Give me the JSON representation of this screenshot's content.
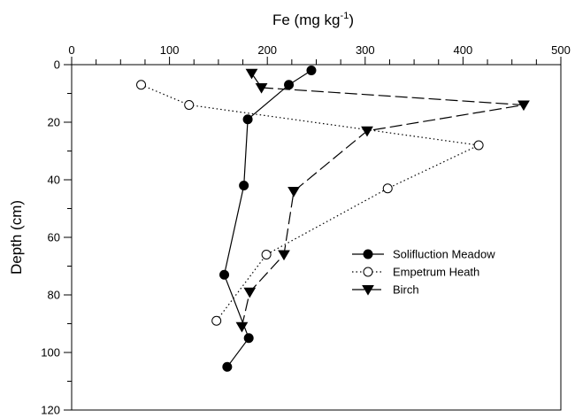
{
  "chart_data": {
    "type": "line",
    "title": "",
    "xlabel": "Fe (mg kg",
    "xlabel_superscript": "-1",
    "xlabel_suffix": ")",
    "ylabel": "Depth (cm)",
    "x_axis_position": "top",
    "y_axis_inverted": true,
    "xlim": [
      0,
      500
    ],
    "ylim": [
      0,
      120
    ],
    "x_ticks": [
      0,
      100,
      200,
      300,
      400,
      500
    ],
    "y_ticks": [
      0,
      20,
      40,
      60,
      80,
      100,
      120
    ],
    "grid": false,
    "legend_position": "right-middle",
    "series": [
      {
        "name": "Solifluction Meadow",
        "marker": "filled-circle",
        "line_style": "solid",
        "color": "#000000",
        "points": [
          [
            245,
            2
          ],
          [
            222,
            7
          ],
          [
            180,
            19
          ],
          [
            176,
            42
          ],
          [
            156,
            73
          ],
          [
            181,
            95
          ],
          [
            159,
            105
          ]
        ]
      },
      {
        "name": "Empetrum Heath",
        "marker": "open-circle",
        "line_style": "dotted",
        "color": "#000000",
        "points": [
          [
            71,
            7
          ],
          [
            120,
            14
          ],
          [
            416,
            28
          ],
          [
            323,
            43
          ],
          [
            199,
            66
          ],
          [
            148,
            89
          ]
        ]
      },
      {
        "name": "Birch",
        "marker": "filled-triangle-down",
        "line_style": "dashed",
        "color": "#000000",
        "points": [
          [
            184,
            3
          ],
          [
            194,
            8
          ],
          [
            462,
            14
          ],
          [
            302,
            23
          ],
          [
            227,
            44
          ],
          [
            217,
            66
          ],
          [
            182,
            79
          ],
          [
            174,
            91
          ]
        ]
      }
    ]
  }
}
